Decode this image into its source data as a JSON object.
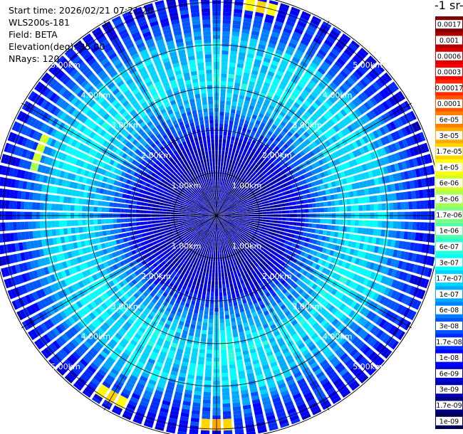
{
  "header": {
    "start_time": "Start time: 2026/02/21 07:21:20",
    "instrument": "WLS200s-181",
    "field": "Field: BETA",
    "elevation": "Elevation(deg): 35.00",
    "nrays": "NRays: 120"
  },
  "colorbar": {
    "title": "-1 sr-",
    "labels": [
      "0.0017",
      "0.001",
      "0.0006",
      "0.0003",
      "0.00017",
      "0.0001",
      "6e-05",
      "3e-05",
      "1.7e-05",
      "1e-05",
      "6e-06",
      "3e-06",
      "1.7e-06",
      "1e-06",
      "6e-07",
      "3e-07",
      "1.7e-07",
      "1e-07",
      "6e-08",
      "3e-08",
      "1.7e-08",
      "1e-08",
      "6e-09",
      "3e-09",
      "1.7e-09",
      "1e-09"
    ],
    "colors": [
      "#7f0000",
      "#b00000",
      "#d80000",
      "#ff0000",
      "#ff2a00",
      "#ff5500",
      "#ff8000",
      "#ffaa00",
      "#ffd500",
      "#ffff00",
      "#d5ff2a",
      "#aaff55",
      "#80ff80",
      "#55ffaa",
      "#2affd5",
      "#00ffff",
      "#00d5ff",
      "#00aaff",
      "#0080ff",
      "#0055ff",
      "#002aff",
      "#0000ff",
      "#0000d8",
      "#0000b0",
      "#00007f",
      "#000055"
    ]
  },
  "chart_data": {
    "type": "heatmap",
    "projection": "polar-ppi",
    "field": "BETA",
    "elevation_deg": 35.0,
    "n_rays": 120,
    "range_rings_km": [
      1,
      2,
      3,
      4,
      5
    ],
    "range_labels": [
      "1.00km",
      "2.00km",
      "3.00km",
      "4.00km",
      "5.00km"
    ],
    "max_range_km": 5.2,
    "radial_profile_log10": [
      {
        "range_km": 0.0,
        "log10": -8.5
      },
      {
        "range_km": 1.0,
        "log10": -8.4
      },
      {
        "range_km": 1.8,
        "log10": -8.0
      },
      {
        "range_km": 2.5,
        "log10": -7.0
      },
      {
        "range_km": 3.2,
        "log10": -6.5
      },
      {
        "range_km": 4.0,
        "log10": -6.7
      },
      {
        "range_km": 4.6,
        "log10": -7.5
      },
      {
        "range_km": 5.2,
        "log10": -8.0
      }
    ],
    "hotspots": [
      {
        "azimuth_deg": 180,
        "range_km": 4.9,
        "value": 3e-05
      },
      {
        "azimuth_deg": 210,
        "range_km": 4.9,
        "value": 1.7e-05
      },
      {
        "azimuth_deg": 290,
        "range_km": 4.4,
        "value": 1e-05
      },
      {
        "azimuth_deg": 12,
        "range_km": 5.0,
        "value": 1.7e-05
      }
    ],
    "grid": true
  }
}
